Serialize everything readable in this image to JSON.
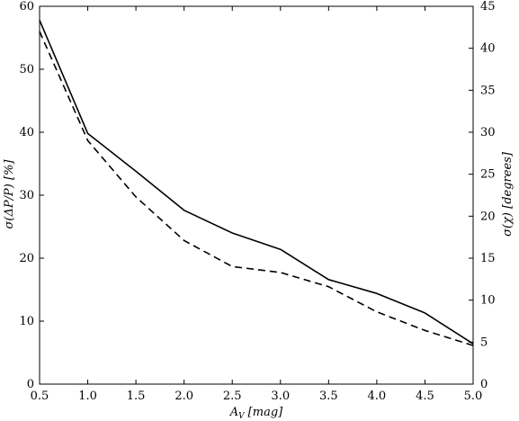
{
  "chart_data": {
    "type": "line",
    "xlabel": "A_V [mag]",
    "xlabel_main": "A",
    "xlabel_sub": "V",
    "xlabel_unit": "[mag]",
    "ylabel_left": "σ(ΔP/P)  [%]",
    "ylabel_right": "σ(χ)  [degrees]",
    "xlim": [
      0.5,
      5.0
    ],
    "ylim_left": [
      0,
      60
    ],
    "ylim_right": [
      0,
      45
    ],
    "x_ticks": [
      "0.5",
      "1.0",
      "1.5",
      "2.0",
      "2.5",
      "3.0",
      "3.5",
      "4.0",
      "4.5",
      "5.0"
    ],
    "y_left_ticks": [
      "0",
      "10",
      "20",
      "30",
      "40",
      "50",
      "60"
    ],
    "y_right_ticks": [
      "0",
      "5",
      "10",
      "15",
      "20",
      "25",
      "30",
      "35",
      "40",
      "45"
    ],
    "grid": false,
    "series": [
      {
        "axis": "left",
        "style": "solid",
        "x": [
          0.5,
          1.0,
          1.5,
          2.0,
          2.5,
          3.0,
          3.5,
          4.0,
          4.5,
          5.0
        ],
        "values": [
          57.8,
          39.8,
          33.8,
          27.6,
          24.0,
          21.4,
          16.6,
          14.4,
          11.3,
          6.4
        ]
      },
      {
        "axis": "right",
        "style": "dashed",
        "x": [
          0.5,
          1.0,
          1.5,
          2.0,
          2.5,
          3.0,
          3.5,
          4.0,
          4.5,
          5.0
        ],
        "values": [
          42.0,
          29.0,
          22.3,
          17.1,
          14.0,
          13.3,
          11.6,
          8.6,
          6.4,
          4.6
        ]
      }
    ]
  }
}
